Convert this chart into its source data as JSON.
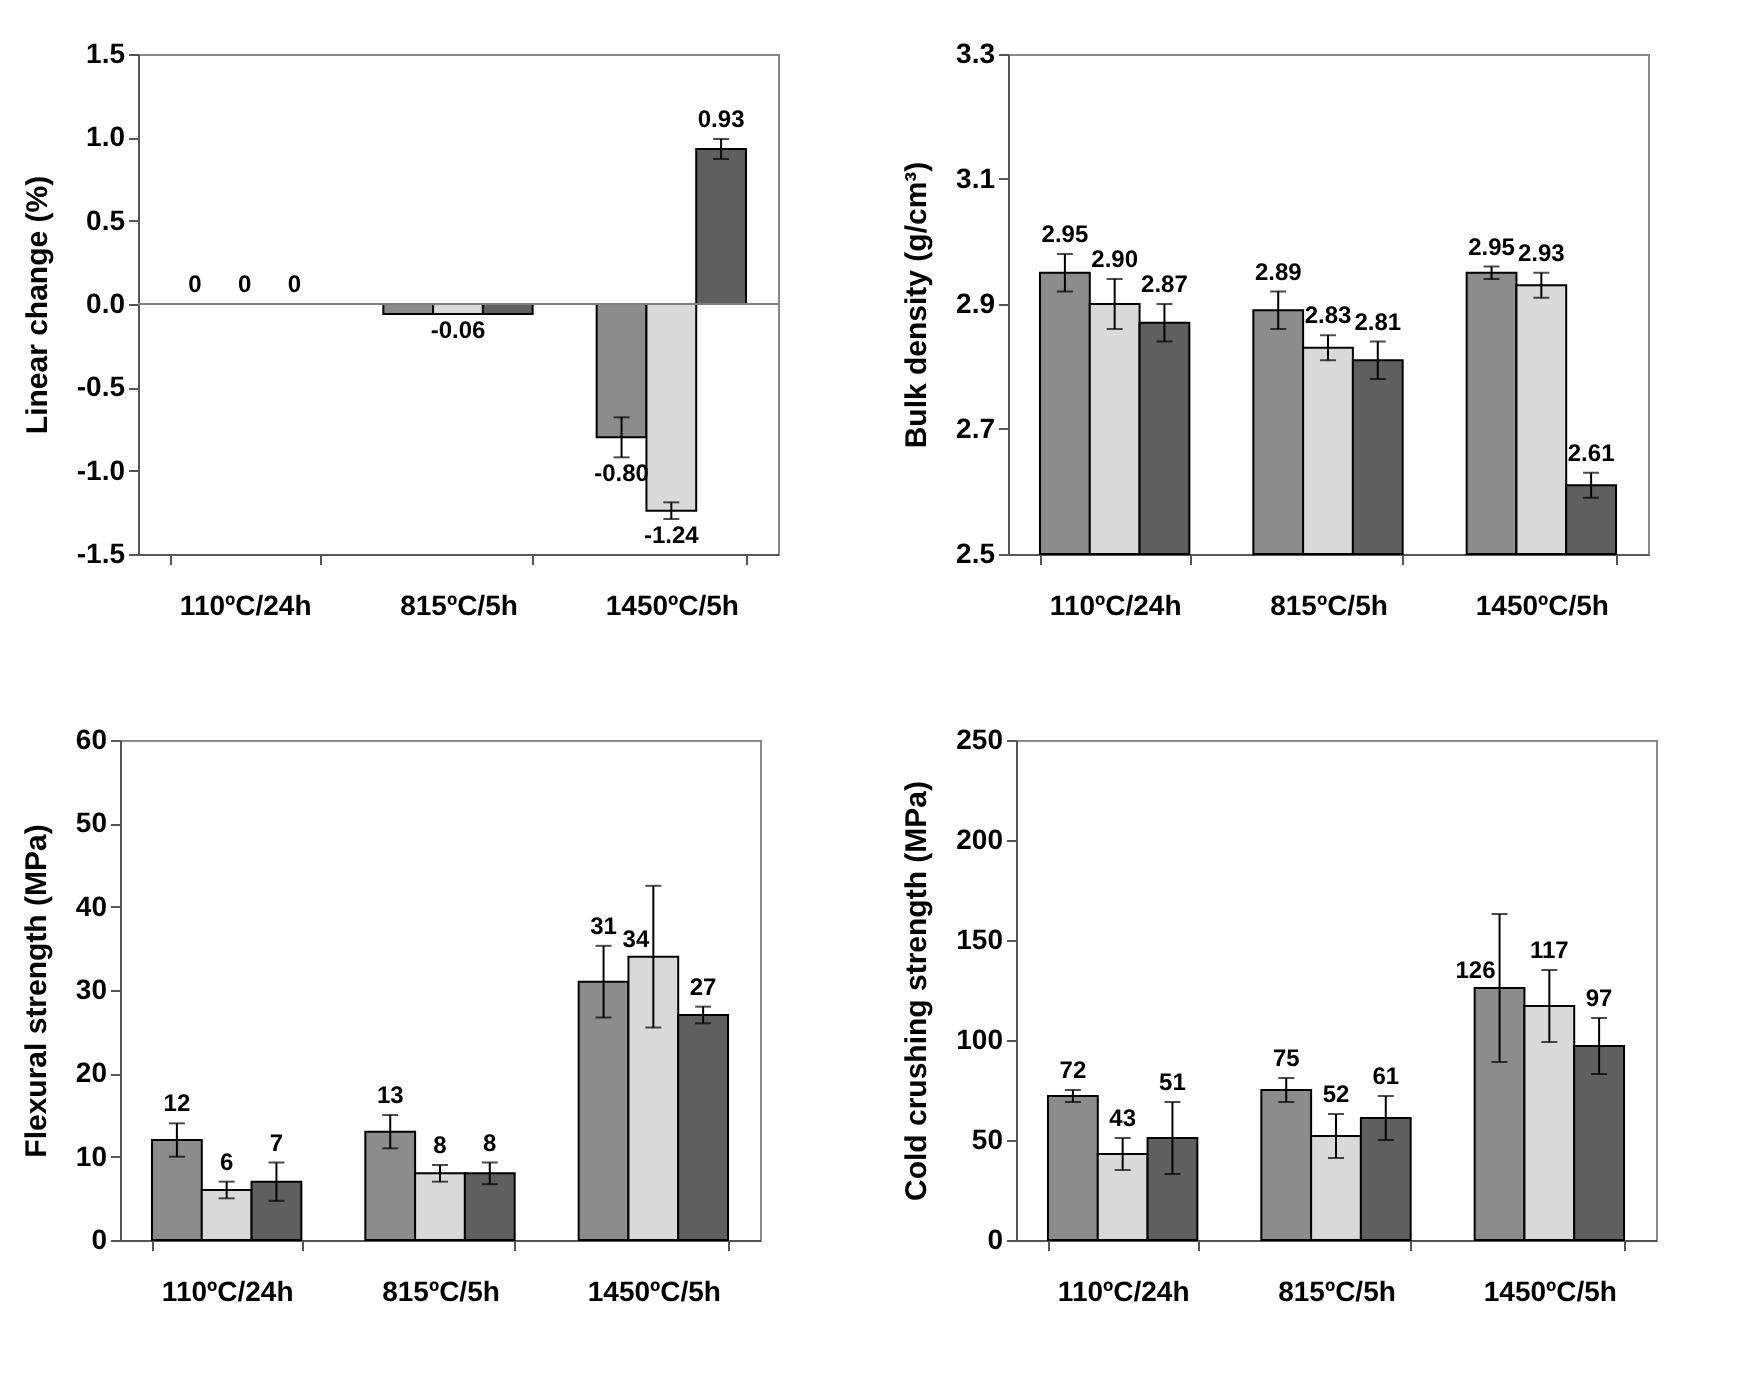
{
  "chart_data": [
    {
      "type": "bar",
      "ylabel": "Linear change (%)",
      "categories": [
        "110ºC/24h",
        "815ºC/5h",
        "1450ºC/5h"
      ],
      "ylim": [
        -1.5,
        1.5
      ],
      "yticks": [
        {
          "value": -1.5,
          "label": "-1.5"
        },
        {
          "value": -1,
          "label": "-1.0"
        },
        {
          "value": -0.5,
          "label": "-0.5"
        },
        {
          "value": 0,
          "label": "0.0"
        },
        {
          "value": 0.5,
          "label": "0.5"
        },
        {
          "value": 1,
          "label": "1.0"
        },
        {
          "value": 1.5,
          "label": "1.5"
        }
      ],
      "ref_lines": [
        {
          "axis": "y",
          "value": 0,
          "color": "#808080"
        }
      ],
      "series": [
        {
          "color": "#8c8c8c",
          "values": [
            0,
            -0.06,
            -0.8
          ],
          "errors": [
            null,
            null,
            0.12
          ],
          "value_labels": [
            "0",
            null,
            "-0.80"
          ]
        },
        {
          "color": "#d9d9d9",
          "values": [
            0,
            -0.06,
            -1.24
          ],
          "errors": [
            null,
            null,
            0.05
          ],
          "value_labels": [
            "0",
            "-0.06",
            "-1.24"
          ]
        },
        {
          "color": "#5f5f5f",
          "values": [
            0,
            -0.06,
            0.93
          ],
          "errors": [
            null,
            null,
            0.06
          ],
          "value_labels": [
            "0",
            null,
            "0.93"
          ]
        }
      ]
    },
    {
      "type": "bar",
      "ylabel": "Bulk density (g/cm³)",
      "categories": [
        "110ºC/24h",
        "815ºC/5h",
        "1450ºC/5h"
      ],
      "ylim": [
        2.5,
        3.3
      ],
      "yticks": [
        2.5,
        2.7,
        2.9,
        3.1,
        3.3
      ],
      "series": [
        {
          "color": "#8c8c8c",
          "values": [
            2.95,
            2.89,
            2.95
          ],
          "errors": [
            0.03,
            0.03,
            0.01
          ],
          "value_labels": [
            "2.95",
            "2.89",
            "2.95"
          ]
        },
        {
          "color": "#d9d9d9",
          "values": [
            2.9,
            2.83,
            2.93
          ],
          "errors": [
            0.04,
            0.02,
            0.02
          ],
          "value_labels": [
            "2.90",
            "2.83",
            "2.93"
          ]
        },
        {
          "color": "#5f5f5f",
          "values": [
            2.87,
            2.81,
            2.61
          ],
          "errors": [
            0.03,
            0.03,
            0.02
          ],
          "value_labels": [
            "2.87",
            "2.81",
            "2.61"
          ]
        }
      ]
    },
    {
      "type": "bar",
      "ylabel": "Flexural strength (MPa)",
      "categories": [
        "110ºC/24h",
        "815ºC/5h",
        "1450ºC/5h"
      ],
      "ylim": [
        0,
        60
      ],
      "yticks": [
        0,
        10,
        20,
        30,
        40,
        50,
        60
      ],
      "series": [
        {
          "color": "#8c8c8c",
          "values": [
            12,
            13,
            31
          ],
          "errors": [
            2,
            2,
            4.3
          ],
          "value_labels": [
            "12",
            "13",
            "31"
          ]
        },
        {
          "color": "#d9d9d9",
          "values": [
            6,
            8,
            34
          ],
          "errors": [
            1,
            1,
            8.5
          ],
          "value_labels": [
            "6",
            "8",
            "34"
          ]
        },
        {
          "color": "#5f5f5f",
          "values": [
            7,
            8,
            27
          ],
          "errors": [
            2.3,
            1.3,
            1
          ],
          "value_labels": [
            "7",
            "8",
            "27"
          ]
        }
      ]
    },
    {
      "type": "bar",
      "ylabel": "Cold crushing strength (MPa)",
      "categories": [
        "110ºC/24h",
        "815ºC/5h",
        "1450ºC/5h"
      ],
      "ylim": [
        0,
        250
      ],
      "yticks": [
        0,
        50,
        100,
        150,
        200,
        250
      ],
      "series": [
        {
          "color": "#8c8c8c",
          "values": [
            72,
            75,
            126
          ],
          "errors": [
            3,
            6,
            37
          ],
          "value_labels": [
            "72",
            "75",
            "126"
          ]
        },
        {
          "color": "#d9d9d9",
          "values": [
            43,
            52,
            117
          ],
          "errors": [
            8,
            11,
            18
          ],
          "value_labels": [
            "43",
            "52",
            "117"
          ]
        },
        {
          "color": "#5f5f5f",
          "values": [
            51,
            61,
            97
          ],
          "errors": [
            18,
            11,
            14
          ],
          "value_labels": [
            "51",
            "61",
            "97"
          ]
        }
      ]
    }
  ]
}
